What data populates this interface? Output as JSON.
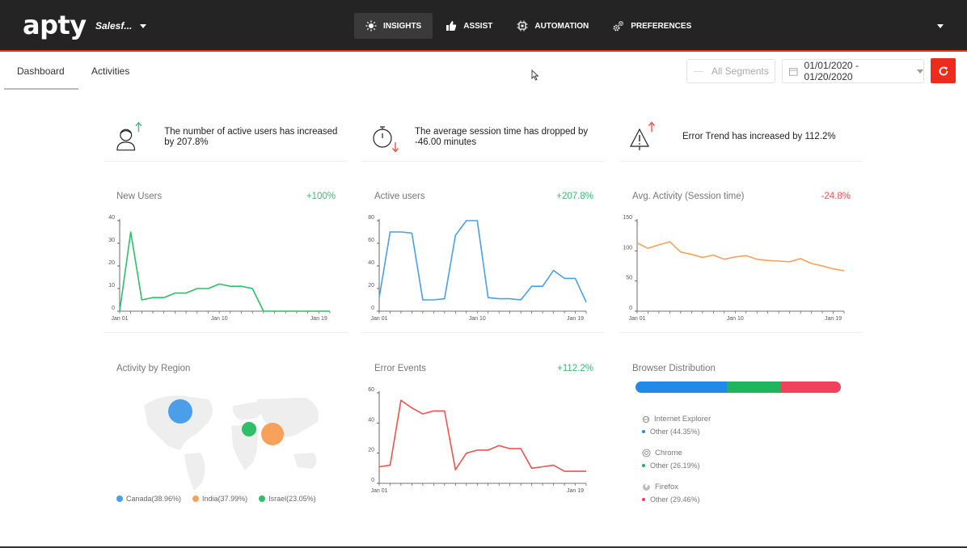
{
  "header": {
    "logo": "apty",
    "app_name": "Salesf...",
    "nav": [
      {
        "label": "INSIGHTS",
        "icon": "bulb-icon",
        "active": true
      },
      {
        "label": "ASSIST",
        "icon": "thumbs-up-icon",
        "active": false
      },
      {
        "label": "AUTOMATION",
        "icon": "chip-icon",
        "active": false
      },
      {
        "label": "PREFERENCES",
        "icon": "gears-icon",
        "active": false
      }
    ]
  },
  "tabs": {
    "dashboard": "Dashboard",
    "activities": "Activities"
  },
  "filters": {
    "segments": "All Segments",
    "date_range": "01/01/2020 - 01/20/2020"
  },
  "insights": [
    {
      "text": "The number of active users has increased by 207.8%",
      "icon": "user-icon",
      "trend": "up"
    },
    {
      "text": "The average session time has dropped by -46.00 minutes",
      "icon": "stopwatch-icon",
      "trend": "down"
    },
    {
      "text": "Error Trend has increased by 112.2%",
      "icon": "warning-icon",
      "trend": "up"
    }
  ],
  "cards": {
    "new_users": {
      "title": "New Users",
      "delta": "+100%"
    },
    "active_users": {
      "title": "Active users",
      "delta": "+207.8%"
    },
    "avg_activity": {
      "title": "Avg. Activity (Session time)",
      "delta": "-24.8%"
    },
    "region": {
      "title": "Activity by Region"
    },
    "error_events": {
      "title": "Error Events",
      "delta": "+112.2%"
    },
    "browser": {
      "title": "Browser Distribution"
    }
  },
  "region_legend": [
    {
      "label": "Canada(38.96%)",
      "color": "#4a9fe8"
    },
    {
      "label": "India(37.99%)",
      "color": "#f9a15b"
    },
    {
      "label": "Israel(23.05%)",
      "color": "#2fbf68"
    }
  ],
  "browsers": [
    {
      "name": "Internet Explorer",
      "sub": "Other (44.35%)",
      "color": "#2189e8",
      "share": 44.35
    },
    {
      "name": "Chrome",
      "sub": "Other (26.19%)",
      "color": "#1fb45e",
      "share": 26.19
    },
    {
      "name": "Firefox",
      "sub": "Other (29.46%)",
      "color": "#f2415a",
      "share": 29.46
    }
  ],
  "colors": {
    "accent": "#ee2c1e",
    "positive": "#3cba6f",
    "negative": "#ef5350"
  },
  "chart_data": [
    {
      "id": "new_users",
      "type": "line",
      "title": "New Users",
      "x": [
        "Jan 01",
        "Jan 02",
        "Jan 03",
        "Jan 04",
        "Jan 05",
        "Jan 06",
        "Jan 07",
        "Jan 08",
        "Jan 09",
        "Jan 10",
        "Jan 11",
        "Jan 12",
        "Jan 13",
        "Jan 14",
        "Jan 15",
        "Jan 16",
        "Jan 17",
        "Jan 18",
        "Jan 19",
        "Jan 20"
      ],
      "values": [
        0,
        35,
        5,
        6,
        6,
        8,
        8,
        10,
        10,
        12,
        11,
        11,
        10,
        0,
        0,
        0,
        0,
        0,
        0,
        0
      ],
      "ylim": [
        0,
        40
      ],
      "yticks": [
        0,
        10,
        20,
        30,
        40
      ],
      "xticks": [
        "Jan 01",
        "Jan 10",
        "Jan 19"
      ],
      "color": "#2fbf68"
    },
    {
      "id": "active_users",
      "type": "line",
      "title": "Active users",
      "x": [
        "Jan 01",
        "Jan 02",
        "Jan 03",
        "Jan 04",
        "Jan 05",
        "Jan 06",
        "Jan 07",
        "Jan 08",
        "Jan 09",
        "Jan 10",
        "Jan 11",
        "Jan 12",
        "Jan 13",
        "Jan 14",
        "Jan 15",
        "Jan 16",
        "Jan 17",
        "Jan 18",
        "Jan 19",
        "Jan 20"
      ],
      "values": [
        12,
        70,
        70,
        69,
        10,
        10,
        11,
        67,
        80,
        80,
        12,
        11,
        11,
        10,
        22,
        22,
        36,
        29,
        29,
        8
      ],
      "ylim": [
        0,
        80
      ],
      "yticks": [
        0,
        20,
        40,
        60,
        80
      ],
      "xticks": [
        "Jan 01",
        "Jan 10",
        "Jan 19"
      ],
      "color": "#4a9fe8"
    },
    {
      "id": "avg_activity",
      "type": "line",
      "title": "Avg. Activity (Session time)",
      "x": [
        "Jan 01",
        "Jan 02",
        "Jan 03",
        "Jan 04",
        "Jan 05",
        "Jan 06",
        "Jan 07",
        "Jan 08",
        "Jan 09",
        "Jan 10",
        "Jan 11",
        "Jan 12",
        "Jan 13",
        "Jan 14",
        "Jan 15",
        "Jan 16",
        "Jan 17",
        "Jan 18",
        "Jan 19",
        "Jan 20"
      ],
      "values": [
        113,
        104,
        110,
        115,
        98,
        94,
        89,
        93,
        86,
        90,
        92,
        86,
        84,
        83,
        82,
        87,
        79,
        75,
        70,
        67
      ],
      "ylim": [
        0,
        150
      ],
      "yticks": [
        0,
        50,
        100,
        150
      ],
      "xticks": [
        "Jan 01",
        "Jan 10",
        "Jan 19"
      ],
      "color": "#f9a15b"
    },
    {
      "id": "error_events",
      "type": "line",
      "title": "Error Events",
      "x": [
        "Jan 01",
        "Jan 02",
        "Jan 03",
        "Jan 04",
        "Jan 05",
        "Jan 06",
        "Jan 07",
        "Jan 08",
        "Jan 09",
        "Jan 10",
        "Jan 11",
        "Jan 12",
        "Jan 13",
        "Jan 14",
        "Jan 15",
        "Jan 16",
        "Jan 17",
        "Jan 18",
        "Jan 19",
        "Jan 20"
      ],
      "values": [
        11,
        12,
        55,
        50,
        46,
        48,
        48,
        9,
        20,
        22,
        22,
        25,
        23,
        23,
        10,
        11,
        12,
        8,
        8,
        8
      ],
      "ylim": [
        0,
        60
      ],
      "yticks": [
        0,
        20,
        40,
        60
      ],
      "xticks": [
        "Jan 01",
        "Jan 19"
      ],
      "color": "#ef5350"
    }
  ]
}
